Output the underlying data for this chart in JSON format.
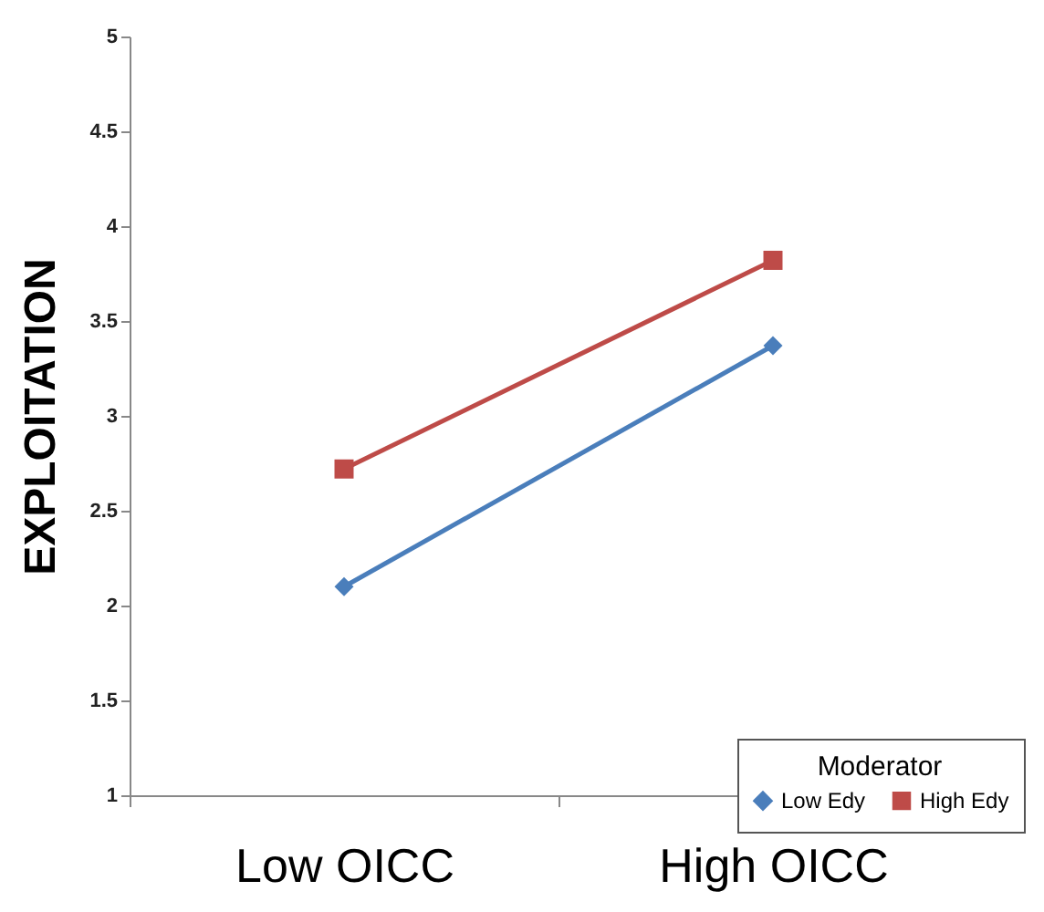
{
  "chart_data": {
    "type": "line",
    "ylabel": "EXPLOITATION",
    "legend_title": "Moderator",
    "categories": [
      "Low OICC",
      "High OICC"
    ],
    "series": [
      {
        "name": "Low Edy",
        "color": "#4a7ebb",
        "marker": "diamond",
        "values": [
          2.1,
          3.37
        ]
      },
      {
        "name": "High Edy",
        "color": "#be4b48",
        "marker": "square",
        "values": [
          2.72,
          3.82
        ]
      }
    ],
    "ylim": [
      1,
      5
    ],
    "yticks": [
      1,
      1.5,
      2,
      2.5,
      3,
      3.5,
      4,
      4.5,
      5
    ],
    "grid": false,
    "legend": "bottom right"
  }
}
